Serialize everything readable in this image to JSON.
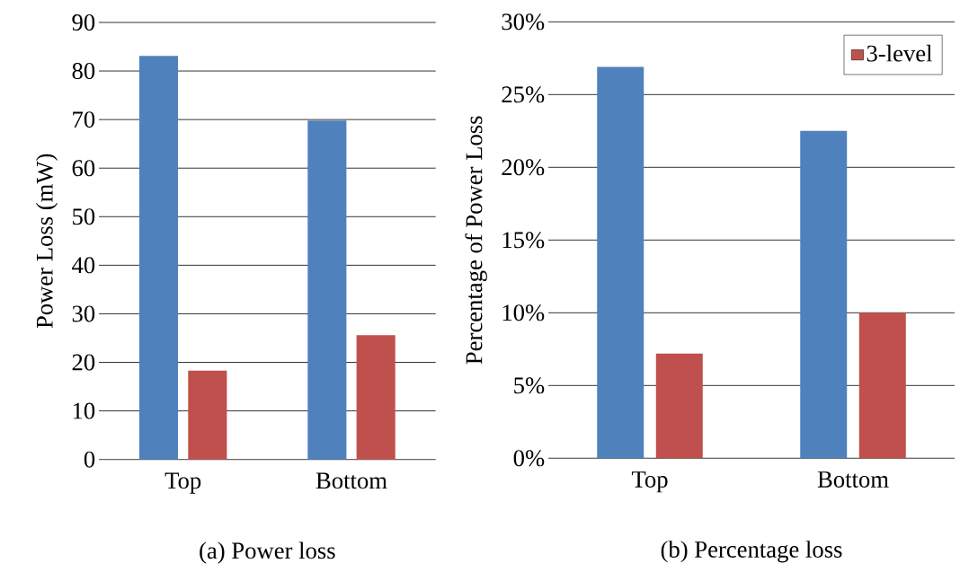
{
  "chart_data": [
    {
      "type": "bar",
      "ylabel": "Power Loss (mW)",
      "categories": [
        "Top",
        "Bottom"
      ],
      "series": [
        {
          "color": "#4f81bd",
          "values": [
            83.1,
            69.8
          ]
        },
        {
          "color": "#c0504d",
          "values": [
            18.3,
            25.6
          ]
        }
      ],
      "ylim": [
        0,
        90
      ],
      "yticks": [
        0,
        10,
        20,
        30,
        40,
        50,
        60,
        70,
        80,
        90
      ],
      "grid": "y",
      "annotations": [
        "(a) Power loss"
      ]
    },
    {
      "type": "bar",
      "ylabel": "Percentage of Power Loss",
      "categories": [
        "Top",
        "Bottom"
      ],
      "series": [
        {
          "color": "#4f81bd",
          "values": [
            26.9,
            22.5
          ]
        },
        {
          "name": "3-level",
          "color": "#c0504d",
          "values": [
            7.2,
            10
          ]
        }
      ],
      "ylim": [
        0,
        30
      ],
      "yticks": [
        {
          "value": 0,
          "label": "0%"
        },
        {
          "value": 5,
          "label": "5%"
        },
        {
          "value": 10,
          "label": "10%"
        },
        {
          "value": 15,
          "label": "15%"
        },
        {
          "value": 20,
          "label": "20%"
        },
        {
          "value": 25,
          "label": "25%"
        },
        {
          "value": 30,
          "label": "30%"
        }
      ],
      "grid": "y",
      "legend": "top right",
      "annotations": [
        "(b) Percentage loss"
      ]
    }
  ]
}
